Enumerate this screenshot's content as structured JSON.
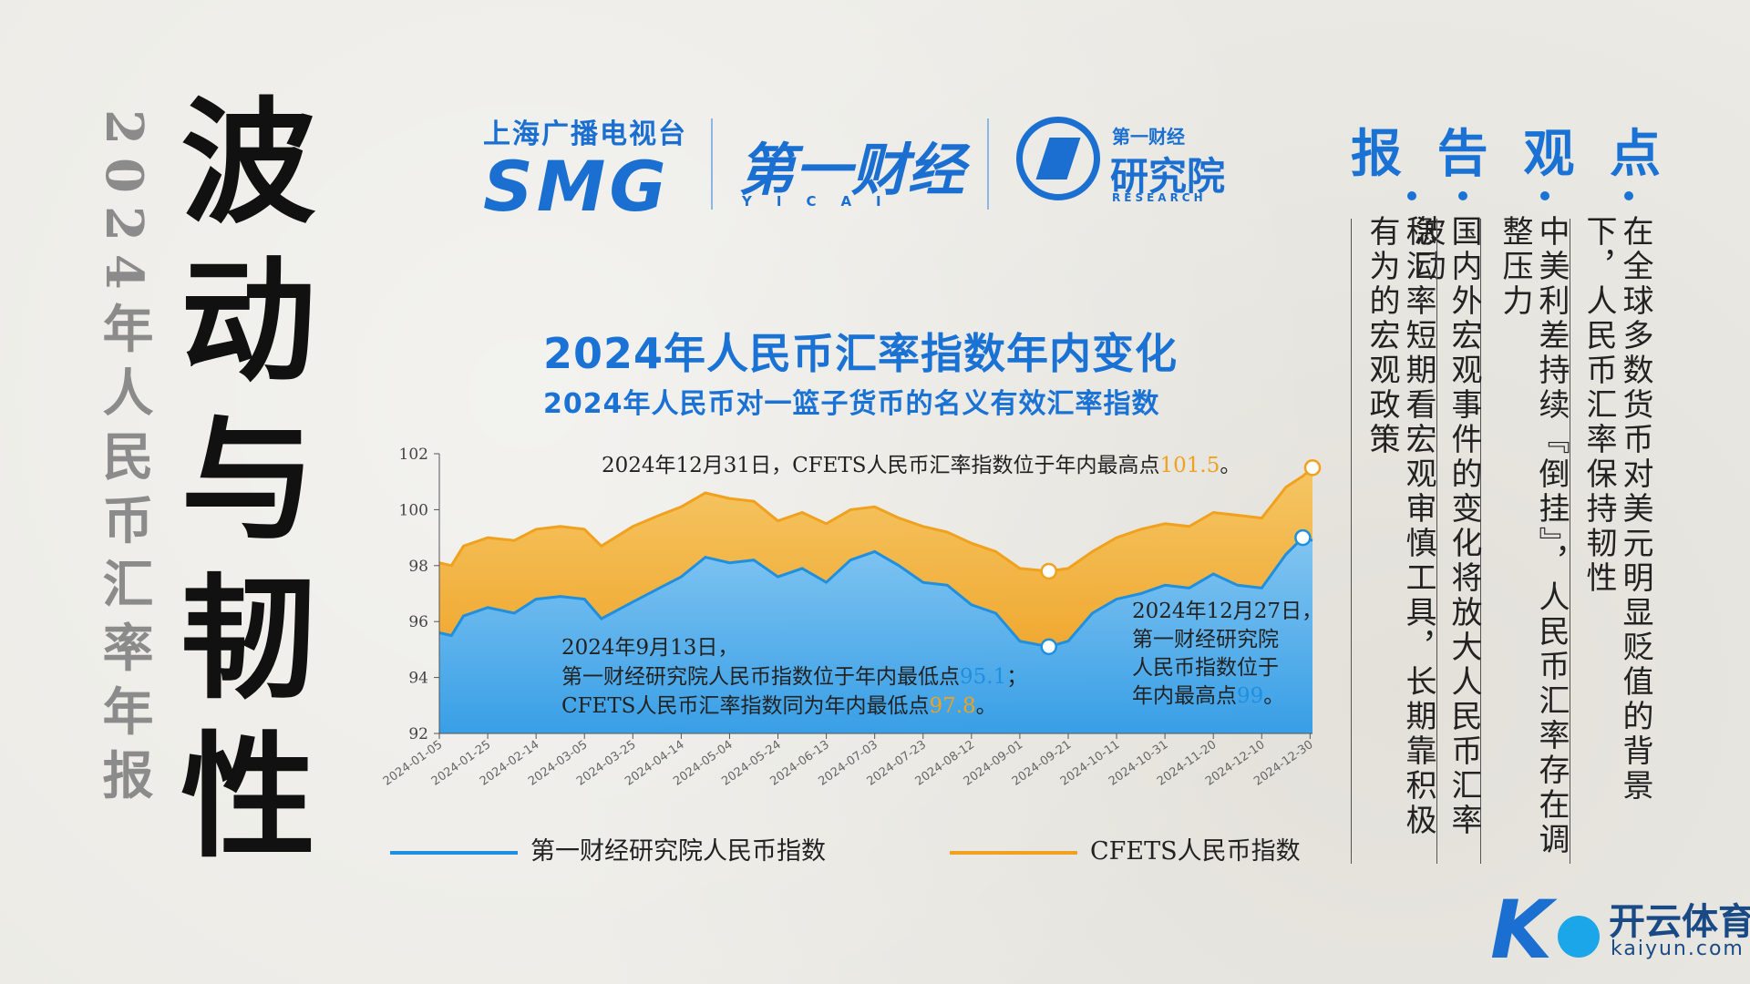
{
  "main_title": "波动与韧性",
  "sub_title": "2024年人民币汇率年报",
  "logos": {
    "smg_top": "上海广播电视台",
    "smg": "SMG",
    "yicai": "第一财经",
    "yicai_sub": "YICAI",
    "research_top": "第一财经",
    "research_main": "研究院",
    "research_sub": "RESEARCH"
  },
  "chart_title": "2024年人民币汇率指数年内变化",
  "chart_subtitle": "2024年人民币对一篮子货币的名义有效汇率指数",
  "chart_data": {
    "type": "area",
    "ylim": [
      92,
      102
    ],
    "yticks": [
      "92",
      "94",
      "96",
      "98",
      "100",
      "102"
    ],
    "x_ticks": [
      "2024-01-05",
      "2024-01-25",
      "2024-02-14",
      "2024-03-05",
      "2024-03-25",
      "2024-04-14",
      "2024-05-04",
      "2024-05-24",
      "2024-06-13",
      "2024-07-03",
      "2024-07-23",
      "2024-08-12",
      "2024-09-01",
      "2024-09-21",
      "2024-10-11",
      "2024-10-31",
      "2024-11-20",
      "2024-12-10",
      "2024-12-30"
    ],
    "x_start": "2024-01-05",
    "x_end": "2024-12-31",
    "series": [
      {
        "name": "第一财经研究院人民币指数",
        "color": "#1f8fe0",
        "points": [
          [
            "2024-01-05",
            95.6
          ],
          [
            "2024-01-10",
            95.5
          ],
          [
            "2024-01-15",
            96.2
          ],
          [
            "2024-01-25",
            96.5
          ],
          [
            "2024-02-05",
            96.3
          ],
          [
            "2024-02-14",
            96.8
          ],
          [
            "2024-02-24",
            96.9
          ],
          [
            "2024-03-05",
            96.8
          ],
          [
            "2024-03-12",
            96.1
          ],
          [
            "2024-03-25",
            96.7
          ],
          [
            "2024-04-05",
            97.2
          ],
          [
            "2024-04-14",
            97.6
          ],
          [
            "2024-04-24",
            98.3
          ],
          [
            "2024-05-04",
            98.1
          ],
          [
            "2024-05-14",
            98.2
          ],
          [
            "2024-05-24",
            97.6
          ],
          [
            "2024-06-03",
            97.9
          ],
          [
            "2024-06-13",
            97.4
          ],
          [
            "2024-06-23",
            98.2
          ],
          [
            "2024-07-03",
            98.5
          ],
          [
            "2024-07-13",
            98.0
          ],
          [
            "2024-07-23",
            97.4
          ],
          [
            "2024-08-02",
            97.3
          ],
          [
            "2024-08-12",
            96.6
          ],
          [
            "2024-08-22",
            96.3
          ],
          [
            "2024-09-01",
            95.3
          ],
          [
            "2024-09-13",
            95.1
          ],
          [
            "2024-09-21",
            95.3
          ],
          [
            "2024-10-01",
            96.3
          ],
          [
            "2024-10-11",
            96.8
          ],
          [
            "2024-10-21",
            97.0
          ],
          [
            "2024-10-31",
            97.3
          ],
          [
            "2024-11-10",
            97.2
          ],
          [
            "2024-11-20",
            97.7
          ],
          [
            "2024-11-30",
            97.3
          ],
          [
            "2024-12-10",
            97.2
          ],
          [
            "2024-12-20",
            98.4
          ],
          [
            "2024-12-27",
            99.0
          ],
          [
            "2024-12-31",
            98.9
          ]
        ]
      },
      {
        "name": "CFETS人民币指数",
        "color": "#f0a11e",
        "points": [
          [
            "2024-01-05",
            98.1
          ],
          [
            "2024-01-10",
            98.0
          ],
          [
            "2024-01-15",
            98.7
          ],
          [
            "2024-01-25",
            99.0
          ],
          [
            "2024-02-05",
            98.9
          ],
          [
            "2024-02-14",
            99.3
          ],
          [
            "2024-02-24",
            99.4
          ],
          [
            "2024-03-05",
            99.3
          ],
          [
            "2024-03-12",
            98.7
          ],
          [
            "2024-03-25",
            99.4
          ],
          [
            "2024-04-05",
            99.8
          ],
          [
            "2024-04-14",
            100.1
          ],
          [
            "2024-04-24",
            100.6
          ],
          [
            "2024-05-04",
            100.4
          ],
          [
            "2024-05-14",
            100.3
          ],
          [
            "2024-05-24",
            99.6
          ],
          [
            "2024-06-03",
            99.9
          ],
          [
            "2024-06-13",
            99.5
          ],
          [
            "2024-06-23",
            100.0
          ],
          [
            "2024-07-03",
            100.1
          ],
          [
            "2024-07-13",
            99.7
          ],
          [
            "2024-07-23",
            99.4
          ],
          [
            "2024-08-02",
            99.2
          ],
          [
            "2024-08-12",
            98.8
          ],
          [
            "2024-08-22",
            98.5
          ],
          [
            "2024-09-01",
            97.9
          ],
          [
            "2024-09-13",
            97.8
          ],
          [
            "2024-09-21",
            97.9
          ],
          [
            "2024-10-01",
            98.5
          ],
          [
            "2024-10-11",
            99.0
          ],
          [
            "2024-10-21",
            99.3
          ],
          [
            "2024-10-31",
            99.5
          ],
          [
            "2024-11-10",
            99.4
          ],
          [
            "2024-11-20",
            99.9
          ],
          [
            "2024-11-30",
            99.8
          ],
          [
            "2024-12-10",
            99.7
          ],
          [
            "2024-12-20",
            100.8
          ],
          [
            "2024-12-27",
            101.2
          ],
          [
            "2024-12-31",
            101.5
          ]
        ]
      }
    ],
    "markers": [
      {
        "series": 1,
        "x": "2024-09-13",
        "y": 97.8
      },
      {
        "series": 0,
        "x": "2024-09-13",
        "y": 95.1
      },
      {
        "series": 0,
        "x": "2024-12-27",
        "y": 99.0
      },
      {
        "series": 1,
        "x": "2024-12-31",
        "y": 101.5
      }
    ],
    "annotations": {
      "top": {
        "text": "2024年12月31日，CFETS人民币汇率指数位于年内最高点",
        "value": "101.5",
        "suffix": "。"
      },
      "low": {
        "line1": "2024年9月13日，",
        "line2": "第一财经研究院人民币指数位于年内最低点",
        "line2_value": "95.1",
        "line2_suffix": "；",
        "line3": "CFETS人民币汇率指数同为年内最低点",
        "line3_value": "97.8",
        "line3_suffix": "。"
      },
      "high": {
        "line1": "2024年12月27日，",
        "line2": "第一财经研究院",
        "line3": "人民币指数位于",
        "line4": "年内最高点",
        "line4_value": "99",
        "line4_suffix": "。"
      }
    }
  },
  "legend": [
    {
      "label": "第一财经研究院人民币指数",
      "color": "#1f8fe0"
    },
    {
      "label": "CFETS人民币指数",
      "color": "#f0a11e"
    }
  ],
  "viewpoints": {
    "header": [
      "报",
      "告",
      "观",
      "点"
    ],
    "items": [
      "在全球多数货币对美元明显贬值的背景下，人民币汇率保持韧性",
      "中美利差持续『倒挂』，人民币汇率存在调整压力",
      "国内外宏观事件的变化将放大人民币汇率波动",
      "稳汇率短期看宏观审慎工具，长期靠积极有为的宏观政策"
    ]
  },
  "brand": {
    "cn": "开云体育",
    "en": "kaiyun.com"
  }
}
